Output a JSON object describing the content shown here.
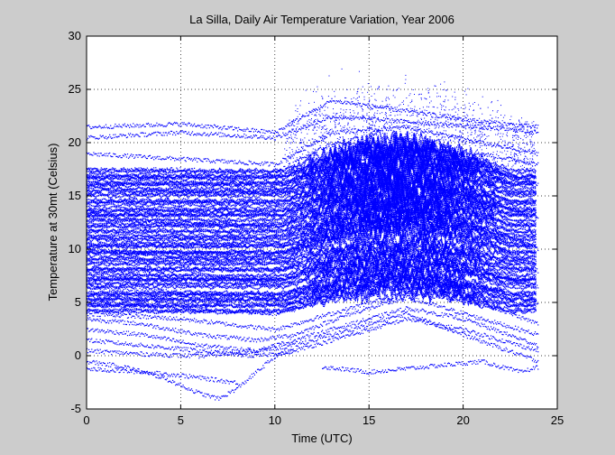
{
  "chart_data": {
    "type": "scatter",
    "title": "La Silla, Daily Air Temperature Variation, Year 2006",
    "xlabel": "Time (UTC)",
    "ylabel": "Temperature at 30mt (Celsius)",
    "xlim": [
      0,
      25
    ],
    "ylim": [
      -5,
      30
    ],
    "xticks": [
      "0",
      "5",
      "10",
      "15",
      "20",
      "25"
    ],
    "yticks": [
      "-5",
      "0",
      "5",
      "10",
      "15",
      "20",
      "25",
      "30"
    ],
    "grid": true,
    "legend": "none",
    "series": [
      {
        "color": "#0000ff",
        "note_points": "dotted daily traces, one per day, hours 0–24",
        "dense_band": [
          4,
          17.5
        ],
        "daily_profiles": [
          {
            "t": [
              0,
              5,
              10,
              13,
              17,
              21,
              24
            ],
            "y": [
              17.5,
              17.5,
              17.2,
              20,
              19.5,
              19,
              18
            ]
          },
          {
            "t": [
              0,
              5,
              10,
              13,
              17,
              21,
              24
            ],
            "y": [
              20.5,
              21,
              20.5,
              22.5,
              22,
              21.5,
              21
            ]
          },
          {
            "t": [
              0,
              5,
              10,
              13,
              17,
              21,
              24
            ],
            "y": [
              21.5,
              21.8,
              21,
              24,
              23,
              22,
              21.5
            ]
          },
          {
            "t": [
              0,
              5,
              10,
              13,
              17,
              21,
              24
            ],
            "y": [
              19,
              18.5,
              18,
              21,
              21.5,
              20,
              19
            ]
          },
          {
            "t": [
              0,
              5,
              10,
              13,
              17,
              21,
              24
            ],
            "y": [
              16,
              15.5,
              15.5,
              18,
              19,
              18,
              16
            ]
          },
          {
            "t": [
              0,
              5,
              10,
              13,
              17,
              21,
              24
            ],
            "y": [
              13,
              12.5,
              12,
              14.5,
              16,
              15,
              13
            ]
          },
          {
            "t": [
              0,
              5,
              10,
              13,
              17,
              21,
              24
            ],
            "y": [
              10,
              9.5,
              9.5,
              11,
              12.5,
              12,
              10
            ]
          },
          {
            "t": [
              0,
              5,
              10,
              13,
              17,
              21,
              24
            ],
            "y": [
              8,
              7.5,
              7,
              9,
              10,
              9.5,
              8
            ]
          },
          {
            "t": [
              0,
              5,
              10,
              13,
              17,
              21,
              24
            ],
            "y": [
              6.5,
              6,
              5.5,
              7.5,
              9,
              8,
              6.5
            ]
          },
          {
            "t": [
              0,
              5,
              10,
              13,
              17,
              21,
              24
            ],
            "y": [
              5,
              4.5,
              4,
              6,
              7.5,
              6.5,
              5
            ]
          },
          {
            "t": [
              0,
              5,
              10,
              13,
              17,
              21,
              24
            ],
            "y": [
              4,
              3.5,
              2.5,
              4,
              6,
              5,
              3
            ]
          },
          {
            "t": [
              0,
              3,
              6,
              9,
              11,
              14,
              17,
              20,
              24
            ],
            "y": [
              3.5,
              3,
              2,
              1.5,
              2,
              4,
              5.5,
              4,
              2
            ]
          },
          {
            "t": [
              0,
              3,
              6,
              9,
              11,
              14,
              17,
              20,
              24
            ],
            "y": [
              2.5,
              2,
              1,
              0.5,
              1.5,
              3,
              4.5,
              3.5,
              1
            ]
          },
          {
            "t": [
              0,
              3,
              6,
              9,
              11,
              14,
              17,
              20,
              24
            ],
            "y": [
              1.5,
              1,
              0.5,
              0,
              0.5,
              2,
              3.5,
              2.5,
              0.5
            ]
          },
          {
            "t": [
              0,
              3,
              6,
              9,
              11,
              14,
              17,
              20,
              24
            ],
            "y": [
              0.5,
              0.2,
              0,
              0.5,
              1,
              2.5,
              4,
              2,
              -0.5
            ]
          },
          {
            "t": [
              0,
              2,
              4,
              6,
              7,
              8,
              9,
              10,
              11
            ],
            "y": [
              -0.5,
              -1,
              -2,
              -3.5,
              -4,
              -3,
              -1.5,
              0,
              0.5
            ]
          },
          {
            "t": [
              0,
              3,
              5,
              8
            ],
            "y": [
              -1.2,
              -1.5,
              -1.8,
              -2.5
            ]
          },
          {
            "t": [
              12.5,
              15,
              18,
              21,
              23,
              24
            ],
            "y": [
              -1,
              -1.5,
              -1,
              -0.5,
              -1.5,
              -1
            ]
          }
        ]
      }
    ]
  }
}
